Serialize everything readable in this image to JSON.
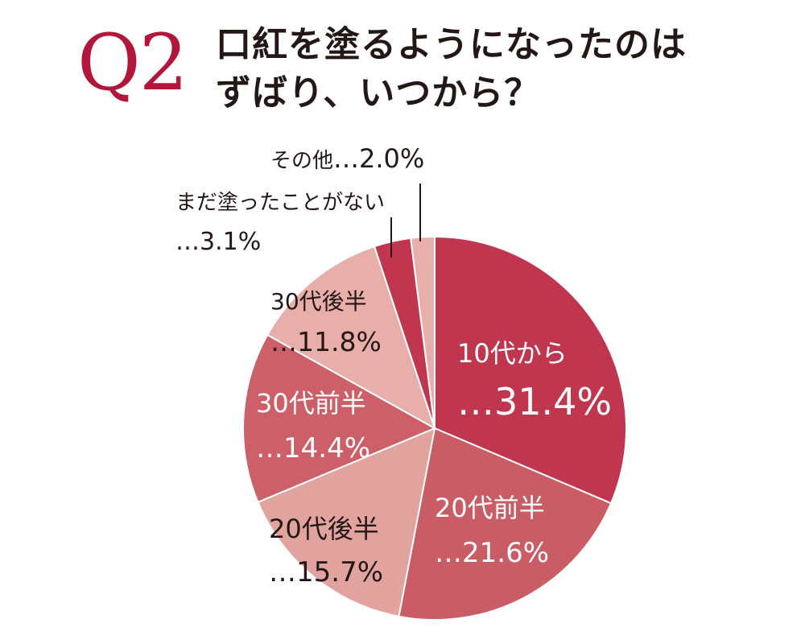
{
  "header": {
    "q_label": "Q2",
    "question_line1": "口紅を塗るようになったのは",
    "question_line2": "ずばり、いつから？"
  },
  "chart_data": {
    "type": "pie",
    "start": "12 o'clock",
    "direction": "clockwise",
    "slices": [
      {
        "label": "10代から",
        "value_text": "…31.4%",
        "value": 31.4,
        "color": "#c0364e",
        "text_color": "#ffffff"
      },
      {
        "label": "20代前半",
        "value_text": "…21.6%",
        "value": 21.6,
        "color": "#c95c64",
        "text_color": "#ffffff"
      },
      {
        "label": "20代後半",
        "value_text": "…15.7%",
        "value": 15.7,
        "color": "#e2a39e",
        "text_color": "#231815"
      },
      {
        "label": "30代前半",
        "value_text": "…14.4%",
        "value": 14.4,
        "color": "#cc5f68",
        "text_color": "#ffffff"
      },
      {
        "label": "30代後半",
        "value_text": "…11.8%",
        "value": 11.8,
        "color": "#e7aeaa",
        "text_color": "#231815"
      },
      {
        "label": "まだ塗ったことがない",
        "value_text": "…3.1%",
        "value": 3.1,
        "color": "#c0364e",
        "text_color": "#231815"
      },
      {
        "label": "その他",
        "value_text": "…2.0%",
        "value": 2.0,
        "color": "#e7aeaa",
        "text_color": "#231815"
      }
    ]
  }
}
